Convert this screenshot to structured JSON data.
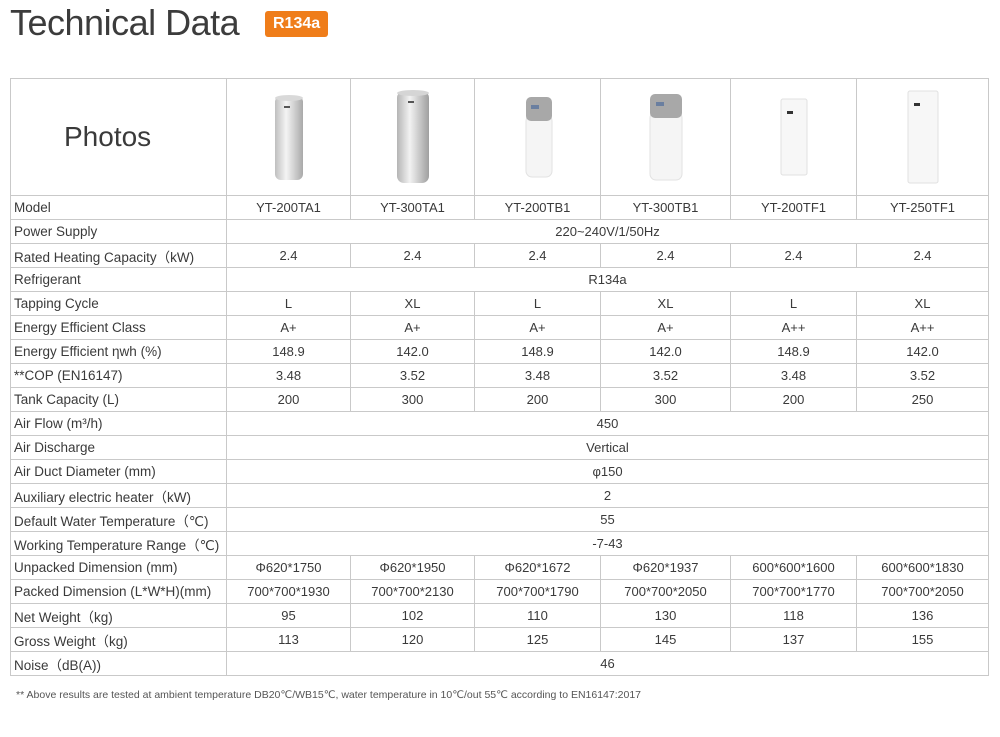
{
  "header": {
    "title": "Technical Data",
    "refrigerant_badge": "R134a"
  },
  "table": {
    "photos_label": "Photos",
    "models": [
      "YT-200TA1",
      "YT-300TA1",
      "YT-200TB1",
      "YT-300TB1",
      "YT-200TF1",
      "YT-250TF1"
    ],
    "rows": [
      {
        "label": "Model",
        "values": [
          "YT-200TA1",
          "YT-300TA1",
          "YT-200TB1",
          "YT-300TB1",
          "YT-200TF1",
          "YT-250TF1"
        ]
      },
      {
        "label": "Power Supply",
        "span": "220~240V/1/50Hz"
      },
      {
        "label": "Rated Heating Capacity（kW)",
        "values": [
          "2.4",
          "2.4",
          "2.4",
          "2.4",
          "2.4",
          "2.4"
        ]
      },
      {
        "label": "Refrigerant",
        "span": "R134a"
      },
      {
        "label": "Tapping Cycle",
        "values": [
          "L",
          "XL",
          "L",
          "XL",
          "L",
          "XL"
        ]
      },
      {
        "label": "Energy Efficient Class",
        "values": [
          "A+",
          "A+",
          "A+",
          "A+",
          "A++",
          "A++"
        ]
      },
      {
        "label": "Energy Efficient  ηwh (%)",
        "values": [
          "148.9",
          "142.0",
          "148.9",
          "142.0",
          "148.9",
          "142.0"
        ]
      },
      {
        "label": "**COP (EN16147)",
        "values": [
          "3.48",
          "3.52",
          "3.48",
          "3.52",
          "3.48",
          "3.52"
        ]
      },
      {
        "label": "Tank Capacity (L)",
        "values": [
          "200",
          "300",
          "200",
          "300",
          "200",
          "250"
        ]
      },
      {
        "label": "Air Flow (m³/h)",
        "span": "450"
      },
      {
        "label": "Air Discharge",
        "span": "Vertical"
      },
      {
        "label": "Air Duct Diameter (mm)",
        "span": "φ150"
      },
      {
        "label": "Auxiliary electric heater（kW)",
        "span": "2"
      },
      {
        "label": "Default Water Temperature（℃)",
        "span": "55"
      },
      {
        "label": "Working Temperature Range（℃)",
        "span": "-7-43"
      },
      {
        "label": "Unpacked Dimension (mm)",
        "values": [
          "Φ620*1750",
          "Φ620*1950",
          "Φ620*1672",
          "Φ620*1937",
          "600*600*1600",
          "600*600*1830"
        ]
      },
      {
        "label": "Packed Dimension (L*W*H)(mm)",
        "values": [
          "700*700*1930",
          "700*700*2130",
          "700*700*1790",
          "700*700*2050",
          "700*700*1770",
          "700*700*2050"
        ]
      },
      {
        "label": "Net Weight（kg)",
        "values": [
          "95",
          "102",
          "110",
          "130",
          "118",
          "136"
        ]
      },
      {
        "label": "Gross Weight（kg)",
        "values": [
          "113",
          "120",
          "125",
          "145",
          "137",
          "155"
        ]
      },
      {
        "label": "Noise（dB(A))",
        "span": "46"
      }
    ]
  },
  "photo_icons": [
    "heat-pump-round-silver-icon",
    "heat-pump-round-silver-icon",
    "heat-pump-grey-top-icon",
    "heat-pump-grey-top-icon",
    "heat-pump-square-white-icon",
    "heat-pump-square-white-icon"
  ],
  "footnote": "** Above results are tested at ambient temperature DB20℃/WB15℃, water temperature in 10℃/out 55℃ according to EN16147:2017",
  "colors": {
    "badge": "#ef7d1a",
    "border": "#c9c9c9",
    "text": "#3a3a3a"
  }
}
